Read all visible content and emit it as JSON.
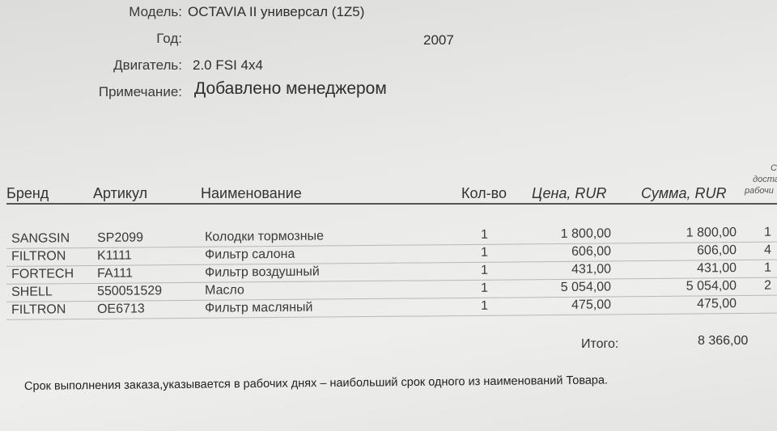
{
  "header": {
    "model_label": "Модель:",
    "model_value": "OCTAVIA II универсал (1Z5)",
    "year_label": "Год:",
    "year_value": "2007",
    "engine_label": "Двигатель:",
    "engine_value": "2.0 FSI 4x4",
    "note_label": "Примечание:",
    "note_value": "Добавлено менеджером"
  },
  "table": {
    "columns": [
      "Бренд",
      "Артикул",
      "Наименование",
      "Кол-во",
      "Цена, RUR",
      "Сумма, RUR"
    ],
    "cut_column": [
      "С",
      "доста",
      "рабочи"
    ],
    "rows": [
      {
        "brand": "SANGSIN",
        "article": "SP2099",
        "name": "Колодки тормозные",
        "qty": "1",
        "price": "1 800,00",
        "sum": "1 800,00",
        "days": "1"
      },
      {
        "brand": "FILTRON",
        "article": "K1111",
        "name": "Фильтр салона",
        "qty": "1",
        "price": "606,00",
        "sum": "606,00",
        "days": "4"
      },
      {
        "brand": "FORTECH",
        "article": "FA111",
        "name": "Фильтр воздушный",
        "qty": "1",
        "price": "431,00",
        "sum": "431,00",
        "days": "1"
      },
      {
        "brand": "SHELL",
        "article": "550051529",
        "name": "Масло",
        "qty": "1",
        "price": "5 054,00",
        "sum": "5 054,00",
        "days": "2"
      },
      {
        "brand": "FILTRON",
        "article": "OE6713",
        "name": "Фильтр масляный",
        "qty": "1",
        "price": "475,00",
        "sum": "475,00",
        "days": ""
      }
    ],
    "total_label": "Итого:",
    "total_value": "8 366,00"
  },
  "footer_note": "Срок выполнения заказа,указывается в рабочих днях – наибольший срок одного из наименований Товара."
}
